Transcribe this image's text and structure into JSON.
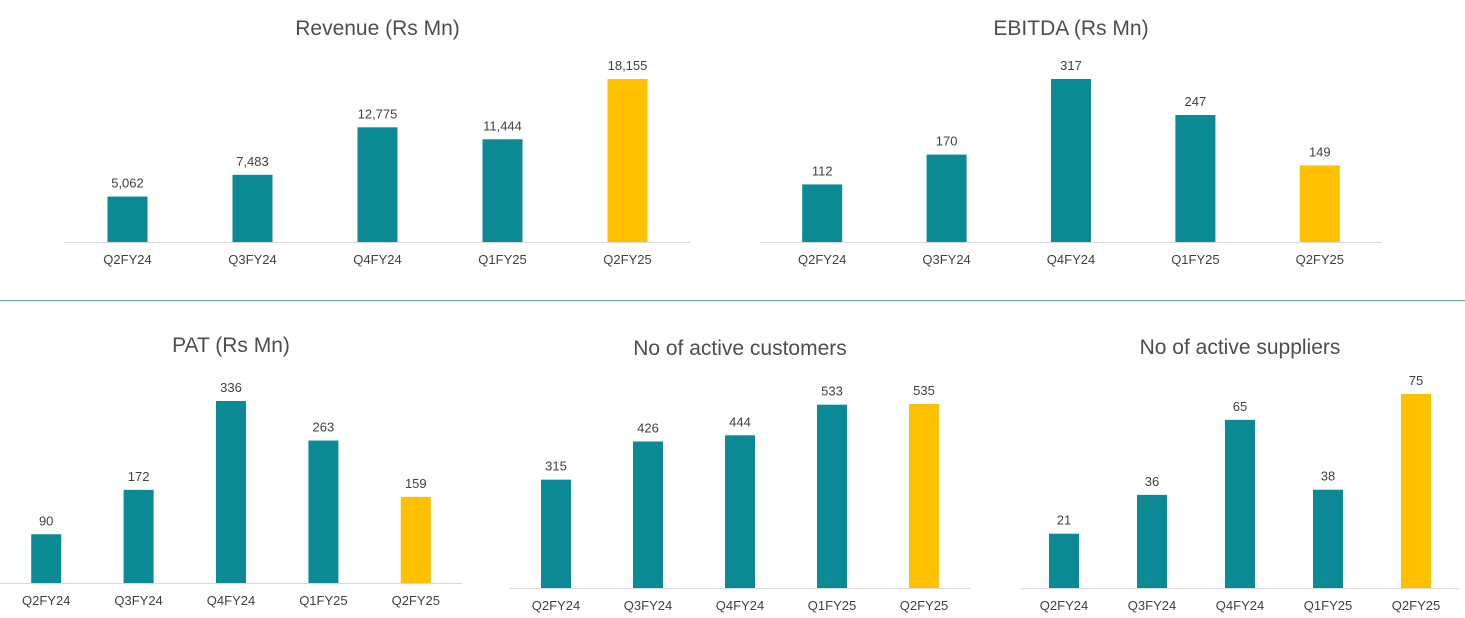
{
  "colors": {
    "regular": "#0b8a96",
    "highlight": "#ffc000",
    "axis": "#d9d9d9",
    "text": "#404040",
    "title": "#4d4d4d",
    "divider": "#5ba6cc"
  },
  "chart_data": [
    {
      "type": "bar",
      "title": "Revenue (Rs Mn)",
      "categories": [
        "Q2FY24",
        "Q3FY24",
        "Q4FY24",
        "Q1FY25",
        "Q2FY25"
      ],
      "values": [
        5062,
        7483,
        12775,
        11444,
        18155
      ],
      "labels": [
        "5,062",
        "7,483",
        "12,775",
        "11,444",
        "18,155"
      ],
      "highlight_index": 4
    },
    {
      "type": "bar",
      "title": "EBITDA (Rs Mn)",
      "categories": [
        "Q2FY24",
        "Q3FY24",
        "Q4FY24",
        "Q1FY25",
        "Q2FY25"
      ],
      "values": [
        112,
        170,
        317,
        247,
        149
      ],
      "labels": [
        "112",
        "170",
        "317",
        "247",
        "149"
      ],
      "highlight_index": 4
    },
    {
      "type": "bar",
      "title": "PAT (Rs Mn)",
      "categories": [
        "Q2FY24",
        "Q3FY24",
        "Q4FY24",
        "Q1FY25",
        "Q2FY25"
      ],
      "values": [
        90,
        172,
        336,
        263,
        159
      ],
      "labels": [
        "90",
        "172",
        "336",
        "263",
        "159"
      ],
      "highlight_index": 4
    },
    {
      "type": "bar",
      "title": "No of active customers",
      "categories": [
        "Q2FY24",
        "Q3FY24",
        "Q4FY24",
        "Q1FY25",
        "Q2FY25"
      ],
      "values": [
        315,
        426,
        444,
        533,
        535
      ],
      "labels": [
        "315",
        "426",
        "444",
        "533",
        "535"
      ],
      "highlight_index": 4
    },
    {
      "type": "bar",
      "title": "No of active suppliers",
      "categories": [
        "Q2FY24",
        "Q3FY24",
        "Q4FY24",
        "Q1FY25",
        "Q2FY25"
      ],
      "values": [
        21,
        36,
        65,
        38,
        75
      ],
      "labels": [
        "21",
        "36",
        "65",
        "38",
        "75"
      ],
      "highlight_index": 4
    }
  ]
}
